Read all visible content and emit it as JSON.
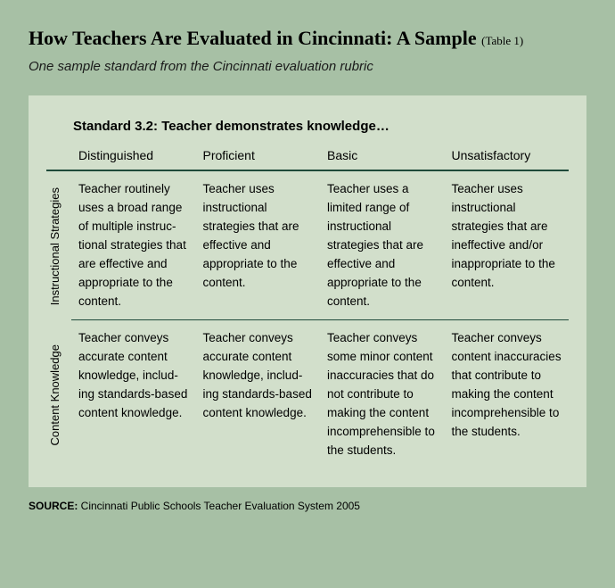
{
  "colors": {
    "page_bg": "#a7c0a5",
    "panel_bg": "#d2dfcb",
    "rule": "#1f4a3a",
    "text": "#000000"
  },
  "title_main": "How Teachers Are Evaluated in Cincinnati: A Sample",
  "title_ref": "(Table 1)",
  "subtitle": "One sample standard from the Cincinnati evaluation rubric",
  "standard": "Standard 3.2: Teacher demonstrates knowledge…",
  "columns": [
    "Distinguished",
    "Proficient",
    "Basic",
    "Unsatisfactory"
  ],
  "rows": [
    {
      "label": "Instructional Strategies",
      "cells": [
        "Teacher routinely uses a broad range of multiple instruc­tional strategies that are effective and appropriate to the content.",
        "Teacher uses instructional strategies that are effective and appropriate to the content.",
        "Teacher uses a limited range of instructional strategies that are effective and appropriate to the content.",
        "Teacher uses instructional strategies that are ineffective and/or inappropriate to the content."
      ]
    },
    {
      "label": "Content Knowledge",
      "cells": [
        "Teacher conveys accurate content knowledge, includ­ing standards-based content knowledge.",
        "Teacher conveys accurate content knowledge, includ­ing standards-based content knowledge.",
        "Teacher conveys some minor con­tent inaccuracies that do not con­tribute to making the content incom­prehensible to the students.",
        "Teacher conveys content inaccura­cies that contrib­ute to making the content incom­prehensible to the students."
      ]
    }
  ],
  "source_label": "SOURCE:",
  "source_text": " Cincinnati Public Schools Teacher Evaluation System 2005"
}
